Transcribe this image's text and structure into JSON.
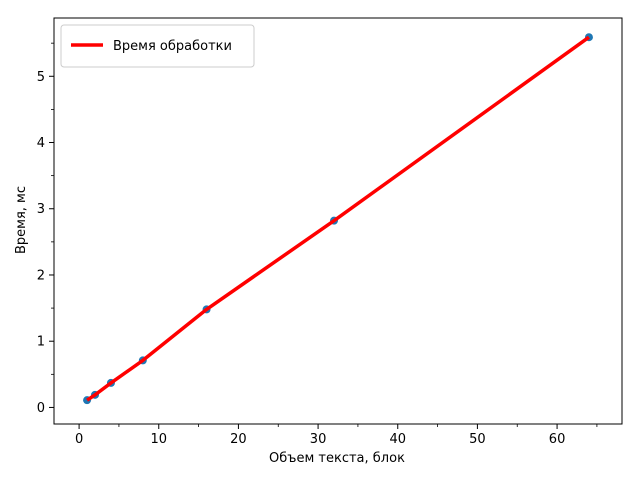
{
  "chart_data": {
    "type": "line",
    "title": "",
    "xlabel": "Объем текста, блок",
    "ylabel": "Время, мс",
    "xlim": [
      -3.15,
      68.15
    ],
    "ylim": [
      -0.25,
      5.88
    ],
    "xticks": [
      0,
      10,
      20,
      30,
      40,
      50,
      60
    ],
    "xminor": [
      5,
      15,
      25,
      35,
      45,
      55,
      65
    ],
    "yticks": [
      0,
      1,
      2,
      3,
      4,
      5
    ],
    "yminor": [
      0.5,
      1.5,
      2.5,
      3.5,
      4.5,
      5.5
    ],
    "grid": false,
    "legend_position": "upper left",
    "series": [
      {
        "name": "",
        "kind": "scatter",
        "color": "#1f77b4",
        "x": [
          1,
          2,
          4,
          8,
          16,
          32,
          64
        ],
        "y": [
          0.11,
          0.19,
          0.37,
          0.71,
          1.48,
          2.82,
          5.59
        ]
      },
      {
        "name": "Время обработки",
        "kind": "line",
        "color": "#ff0000",
        "x": [
          1,
          2,
          4,
          8,
          16,
          32,
          64
        ],
        "y": [
          0.11,
          0.19,
          0.37,
          0.71,
          1.48,
          2.82,
          5.59
        ]
      }
    ]
  }
}
